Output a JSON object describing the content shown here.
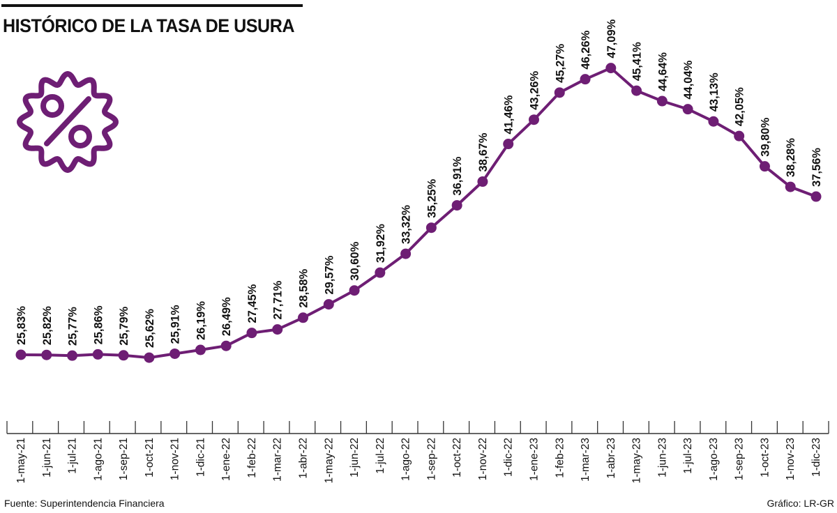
{
  "header": {
    "title": "HISTÓRICO DE LA TASA DE USURA"
  },
  "footer": {
    "source": "Fuente: Superintendencia Financiera",
    "credit": "Gráfico: LR-GR"
  },
  "icons": {
    "badge": "percent-badge-icon"
  },
  "colors": {
    "series": "#6e1e74",
    "text": "#111111",
    "axis": "#333333"
  },
  "chart_data": {
    "type": "line",
    "title": "HISTÓRICO DE LA TASA DE USURA",
    "xlabel": "",
    "ylabel": "",
    "grid": false,
    "legend": "none",
    "x": [
      "1-may-21",
      "1-jun-21",
      "1-jul-21",
      "1-ago-21",
      "1-sep-21",
      "1-oct-21",
      "1-nov-21",
      "1-dic-21",
      "1-ene-22",
      "1-feb-22",
      "1-mar-22",
      "1-abr-22",
      "1-may-22",
      "1-jun-22",
      "1-jul-22",
      "1-ago-22",
      "1-sep-22",
      "1-oct-22",
      "1-nov-22",
      "1-dic-22",
      "1-ene-23",
      "1-feb-23",
      "1-mar-23",
      "1-abr-23",
      "1-may-23",
      "1-jun-23",
      "1-jul-23",
      "1-ago-23",
      "1-sep-23",
      "1-oct-23",
      "1-nov-23",
      "1-dic-23"
    ],
    "values": [
      25.83,
      25.82,
      25.77,
      25.86,
      25.79,
      25.62,
      25.91,
      26.19,
      26.49,
      27.45,
      27.71,
      28.58,
      29.57,
      30.6,
      31.92,
      33.32,
      35.25,
      36.91,
      38.67,
      41.46,
      43.26,
      45.27,
      46.26,
      47.09,
      45.41,
      44.64,
      44.04,
      43.13,
      42.05,
      39.8,
      38.28,
      37.56
    ],
    "labels": [
      "25,83%",
      "25,82%",
      "25,77%",
      "25,86%",
      "25,79%",
      "25,62%",
      "25,91%",
      "26,19%",
      "26,49%",
      "27,45%",
      "27,71%",
      "28,58%",
      "29,57%",
      "30,60%",
      "31,92%",
      "33,32%",
      "35,25%",
      "36,91%",
      "38,67%",
      "41,46%",
      "43,26%",
      "45,27%",
      "46,26%",
      "47,09%",
      "45,41%",
      "44,64%",
      "44,04%",
      "43,13%",
      "42,05%",
      "39,80%",
      "38,28%",
      "37,56%"
    ]
  }
}
